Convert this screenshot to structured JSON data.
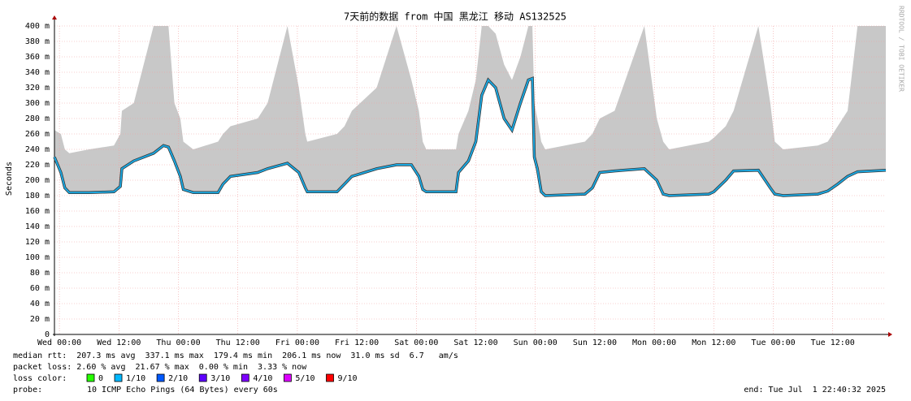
{
  "chart_data": {
    "type": "line",
    "title": "7天前的数据 from 中国 黑龙江 移动 AS132525",
    "y_label": "Seconds",
    "side_text": "RRDTOOL / TOBI OETIKER",
    "xlim": [
      -1,
      166.7
    ],
    "ylim": [
      0,
      0.4
    ],
    "xticks": [
      {
        "value": 0,
        "label": "Wed 00:00"
      },
      {
        "value": 12,
        "label": "Wed 12:00"
      },
      {
        "value": 24,
        "label": "Thu 00:00"
      },
      {
        "value": 36,
        "label": "Thu 12:00"
      },
      {
        "value": 48,
        "label": "Fri 00:00"
      },
      {
        "value": 60,
        "label": "Fri 12:00"
      },
      {
        "value": 72,
        "label": "Sat 00:00"
      },
      {
        "value": 84,
        "label": "Sat 12:00"
      },
      {
        "value": 96,
        "label": "Sun 00:00"
      },
      {
        "value": 108,
        "label": "Sun 12:00"
      },
      {
        "value": 120,
        "label": "Mon 00:00"
      },
      {
        "value": 132,
        "label": "Mon 12:00"
      },
      {
        "value": 144,
        "label": "Tue 00:00"
      },
      {
        "value": 156,
        "label": "Tue 12:00"
      }
    ],
    "yticks": [
      0,
      {
        "value": 0.02,
        "label": "20 m"
      },
      {
        "value": 0.04,
        "label": "40 m"
      },
      {
        "value": 0.06,
        "label": "60 m"
      },
      {
        "value": 0.08,
        "label": "80 m"
      },
      {
        "value": 0.1,
        "label": "100 m"
      },
      {
        "value": 0.12,
        "label": "120 m"
      },
      {
        "value": 0.14,
        "label": "140 m"
      },
      {
        "value": 0.16,
        "label": "160 m"
      },
      {
        "value": 0.18,
        "label": "180 m"
      },
      {
        "value": 0.2,
        "label": "200 m"
      },
      {
        "value": 0.22,
        "label": "220 m"
      },
      {
        "value": 0.24,
        "label": "240 m"
      },
      {
        "value": 0.26,
        "label": "260 m"
      },
      {
        "value": 0.28,
        "label": "280 m"
      },
      {
        "value": 0.3,
        "label": "300 m"
      },
      {
        "value": 0.32,
        "label": "320 m"
      },
      {
        "value": 0.34,
        "label": "340 m"
      },
      {
        "value": 0.36,
        "label": "360 m"
      },
      {
        "value": 0.38,
        "label": "380 m"
      },
      {
        "value": 0.4,
        "label": "400 m"
      }
    ],
    "grid": true,
    "x": [
      -1,
      0.3,
      1.1,
      2,
      6,
      11,
      12.3,
      12.6,
      15,
      19,
      21,
      22,
      23.2,
      24.4,
      25,
      27,
      32,
      33,
      34.5,
      40,
      42,
      46,
      48.3,
      49.6,
      50,
      56,
      57.5,
      59,
      64,
      68,
      71,
      72.5,
      73.3,
      74,
      80,
      80.5,
      82.5,
      84,
      85.2,
      86.5,
      88,
      89.7,
      91.3,
      93,
      94.6,
      95.4,
      95.8,
      96.4,
      97.2,
      98,
      106,
      107.5,
      109,
      112,
      118,
      120.5,
      121.8,
      123,
      131,
      132,
      134.4,
      136,
      141,
      143.4,
      144.3,
      146,
      153,
      155,
      157,
      159,
      161,
      166.7
    ],
    "series": [
      {
        "color": "#1aa7e0",
        "values": [
          0.23,
          0.21,
          0.19,
          0.184,
          0.184,
          0.185,
          0.192,
          0.215,
          0.225,
          0.235,
          0.245,
          0.243,
          0.225,
          0.205,
          0.188,
          0.184,
          0.184,
          0.195,
          0.205,
          0.21,
          0.215,
          0.222,
          0.21,
          0.19,
          0.185,
          0.185,
          0.195,
          0.205,
          0.215,
          0.22,
          0.22,
          0.205,
          0.188,
          0.185,
          0.185,
          0.21,
          0.225,
          0.25,
          0.31,
          0.33,
          0.32,
          0.28,
          0.265,
          0.3,
          0.33,
          0.332,
          0.23,
          0.215,
          0.185,
          0.18,
          0.182,
          0.19,
          0.21,
          0.212,
          0.215,
          0.2,
          0.182,
          0.18,
          0.182,
          0.185,
          0.2,
          0.212,
          0.213,
          0.19,
          0.182,
          0.18,
          0.182,
          0.186,
          0.195,
          0.205,
          0.211,
          0.213
        ]
      }
    ],
    "smoke_color": "#c8c8c8",
    "smoke_max": [
      0.265,
      0.26,
      0.24,
      0.235,
      0.24,
      0.245,
      0.26,
      0.29,
      0.3,
      0.4,
      0.4,
      0.4,
      0.3,
      0.28,
      0.25,
      0.24,
      0.25,
      0.26,
      0.27,
      0.28,
      0.3,
      0.4,
      0.32,
      0.26,
      0.25,
      0.26,
      0.27,
      0.29,
      0.32,
      0.4,
      0.33,
      0.29,
      0.25,
      0.24,
      0.24,
      0.26,
      0.29,
      0.33,
      0.4,
      0.4,
      0.39,
      0.35,
      0.33,
      0.36,
      0.4,
      0.4,
      0.3,
      0.28,
      0.25,
      0.24,
      0.25,
      0.26,
      0.28,
      0.29,
      0.4,
      0.28,
      0.25,
      0.24,
      0.25,
      0.255,
      0.27,
      0.29,
      0.4,
      0.3,
      0.25,
      0.24,
      0.245,
      0.25,
      0.27,
      0.29,
      0.4,
      0.4
    ],
    "stats": [
      "median rtt:  207.3 ms avg  337.1 ms max  179.4 ms min  206.1 ms now  31.0 ms sd  6.7   am/s",
      "packet loss: 2.60 % avg  21.67 % max  0.00 % min  3.33 % now"
    ],
    "loss_label": "loss color:",
    "loss_colors": [
      {
        "label": "0",
        "color": "#26ff00"
      },
      {
        "label": "1/10",
        "color": "#00b8ff"
      },
      {
        "label": "2/10",
        "color": "#0059ff"
      },
      {
        "label": "3/10",
        "color": "#5e00ff"
      },
      {
        "label": "4/10",
        "color": "#7e00ff"
      },
      {
        "label": "5/10",
        "color": "#dd00ff"
      },
      {
        "label": "9/10",
        "color": "#ff0000"
      }
    ],
    "probe_label": "probe:",
    "probe": "10 ICMP Echo Pings (64 Bytes) every 60s",
    "end": "end: Tue Jul  1 22:40:32 2025"
  }
}
